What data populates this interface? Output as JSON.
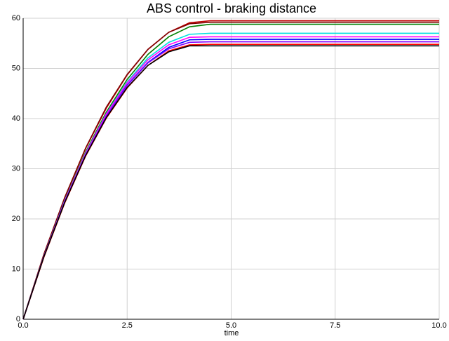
{
  "chart_data": {
    "type": "line",
    "title": "ABS control - braking distance",
    "x_label": "time",
    "x": [
      0,
      0.5,
      1,
      1.5,
      2,
      2.5,
      3,
      3.5,
      4,
      4.5,
      10
    ],
    "series": [
      {
        "color": "#c00000",
        "values": [
          0,
          12.9,
          24.2,
          34.0,
          42.1,
          48.7,
          53.8,
          57.2,
          59.1,
          59.5,
          59.5
        ]
      },
      {
        "color": "#800000",
        "values": [
          0,
          13.0,
          24.3,
          34.1,
          42.3,
          48.8,
          53.8,
          57.2,
          58.9,
          59.2,
          59.2
        ]
      },
      {
        "color": "#008000",
        "values": [
          0,
          12.6,
          23.7,
          33.3,
          41.3,
          47.8,
          52.8,
          56.3,
          58.3,
          58.8,
          58.8
        ]
      },
      {
        "color": "#00e0e0",
        "values": [
          0,
          12.6,
          23.7,
          33.1,
          41.0,
          47.3,
          52.1,
          55.2,
          56.8,
          57.0,
          57.0
        ]
      },
      {
        "color": "#ff00ff",
        "values": [
          0,
          12.6,
          23.6,
          33.0,
          40.9,
          47.1,
          51.7,
          54.7,
          56.2,
          56.3,
          56.3
        ]
      },
      {
        "color": "#0000ff",
        "values": [
          0,
          12.5,
          23.4,
          32.7,
          40.5,
          46.7,
          51.2,
          54.2,
          55.7,
          55.8,
          55.8
        ]
      },
      {
        "color": "#8000ff",
        "values": [
          0,
          12.5,
          23.4,
          32.7,
          40.5,
          46.6,
          51.1,
          53.9,
          55.2,
          55.3,
          55.3
        ]
      },
      {
        "color": "#ff0000",
        "values": [
          0,
          12.4,
          23.2,
          32.5,
          40.1,
          46.1,
          50.6,
          53.5,
          54.7,
          54.8,
          54.8
        ]
      },
      {
        "color": "#000000",
        "values": [
          0,
          12.5,
          23.3,
          32.6,
          40.2,
          46.2,
          50.6,
          53.3,
          54.5,
          54.5,
          54.5
        ]
      }
    ],
    "xlim": [
      0,
      10
    ],
    "xticks": [
      {
        "value": 0,
        "label": "0.0"
      },
      {
        "value": 2.5,
        "label": "2.5"
      },
      {
        "value": 5,
        "label": "5.0"
      },
      {
        "value": 7.5,
        "label": "7.5"
      },
      {
        "value": 10,
        "label": "10.0"
      }
    ],
    "ylim": [
      0,
      60
    ],
    "yticks": [
      0,
      10,
      20,
      30,
      40,
      50,
      60
    ],
    "grid": true
  }
}
